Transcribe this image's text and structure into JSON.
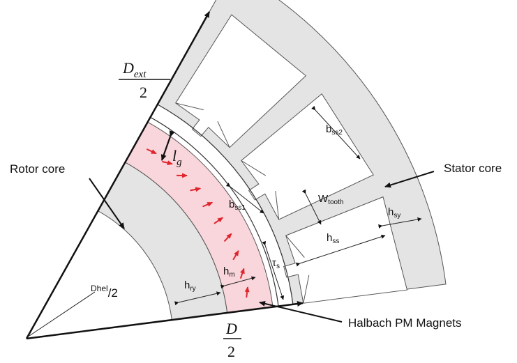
{
  "labels": {
    "rotor_core": "Rotor core",
    "stator_core": "Stator core",
    "halbach": "Halbach PM Magnets"
  },
  "symbols": {
    "d_ext": {
      "main": "D",
      "sub": "ext",
      "den": "2"
    },
    "d_half": {
      "main": "D",
      "den": "2"
    },
    "lg": {
      "main": "l",
      "sub": "g"
    },
    "dhel": {
      "main": "Dhel",
      "tail": "/2"
    },
    "hry": {
      "main": "h",
      "sub": "ry"
    },
    "hm": {
      "main": "h",
      "sub": "m"
    },
    "tau_s": {
      "main": "τ",
      "sub": "s"
    },
    "bss1": {
      "main": "b",
      "sub": "ss1"
    },
    "bss2": {
      "main": "b",
      "sub": "ss2"
    },
    "wtooth": {
      "main": "W",
      "sub": "tooth"
    },
    "hss": {
      "main": "h",
      "sub": "ss"
    },
    "hsy": {
      "main": "h",
      "sub": "sy"
    }
  },
  "colors": {
    "core": "#e4e4e4",
    "magnet": "#f9d6db",
    "magnet_arrow": "#e0242c",
    "outline": "#555555"
  },
  "magnet_arrow_count": 10
}
